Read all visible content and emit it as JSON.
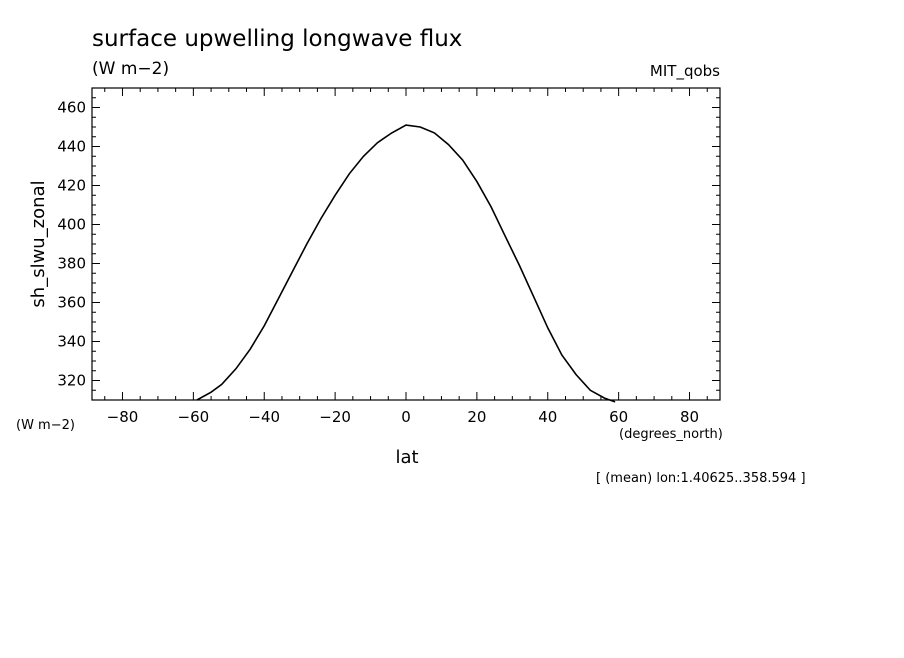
{
  "chart_data": {
    "type": "line",
    "title": "surface upwelling longwave flux",
    "units": "(W m−2)",
    "model_label": "MIT_qobs",
    "ylabel": "sh_slwu_zonal",
    "y_units": "(W m−2)",
    "xlabel": "lat",
    "x_units": "(degrees_north)",
    "footnote": "[ (mean) lon:1.40625..358.594 ]",
    "xlim": [
      -88.6,
      88.6
    ],
    "ylim": [
      310,
      470
    ],
    "x_ticks": [
      -80,
      -60,
      -40,
      -20,
      0,
      20,
      40,
      60,
      80
    ],
    "x_tick_labels": [
      "−80",
      "−60",
      "−40",
      "−20",
      "0",
      "20",
      "40",
      "60",
      "80"
    ],
    "y_ticks": [
      320,
      340,
      360,
      380,
      400,
      420,
      440,
      460
    ],
    "y_tick_labels": [
      "320",
      "340",
      "360",
      "380",
      "400",
      "420",
      "440",
      "460"
    ],
    "grid": false,
    "series": [
      {
        "x": [
          -59,
          -55,
          -52,
          -48,
          -44,
          -40,
          -36,
          -32,
          -28,
          -24,
          -20,
          -16,
          -12,
          -8,
          -4,
          0,
          4,
          8,
          12,
          16,
          20,
          24,
          28,
          32,
          36,
          40,
          44,
          48,
          52,
          56,
          59
        ],
        "y": [
          310,
          314,
          318,
          326,
          336,
          348,
          362,
          376,
          390,
          403,
          415,
          426,
          435,
          442,
          447,
          451,
          450,
          447,
          441,
          433,
          422,
          409,
          394,
          379,
          363,
          347,
          333,
          323,
          315,
          311,
          309
        ]
      }
    ]
  }
}
